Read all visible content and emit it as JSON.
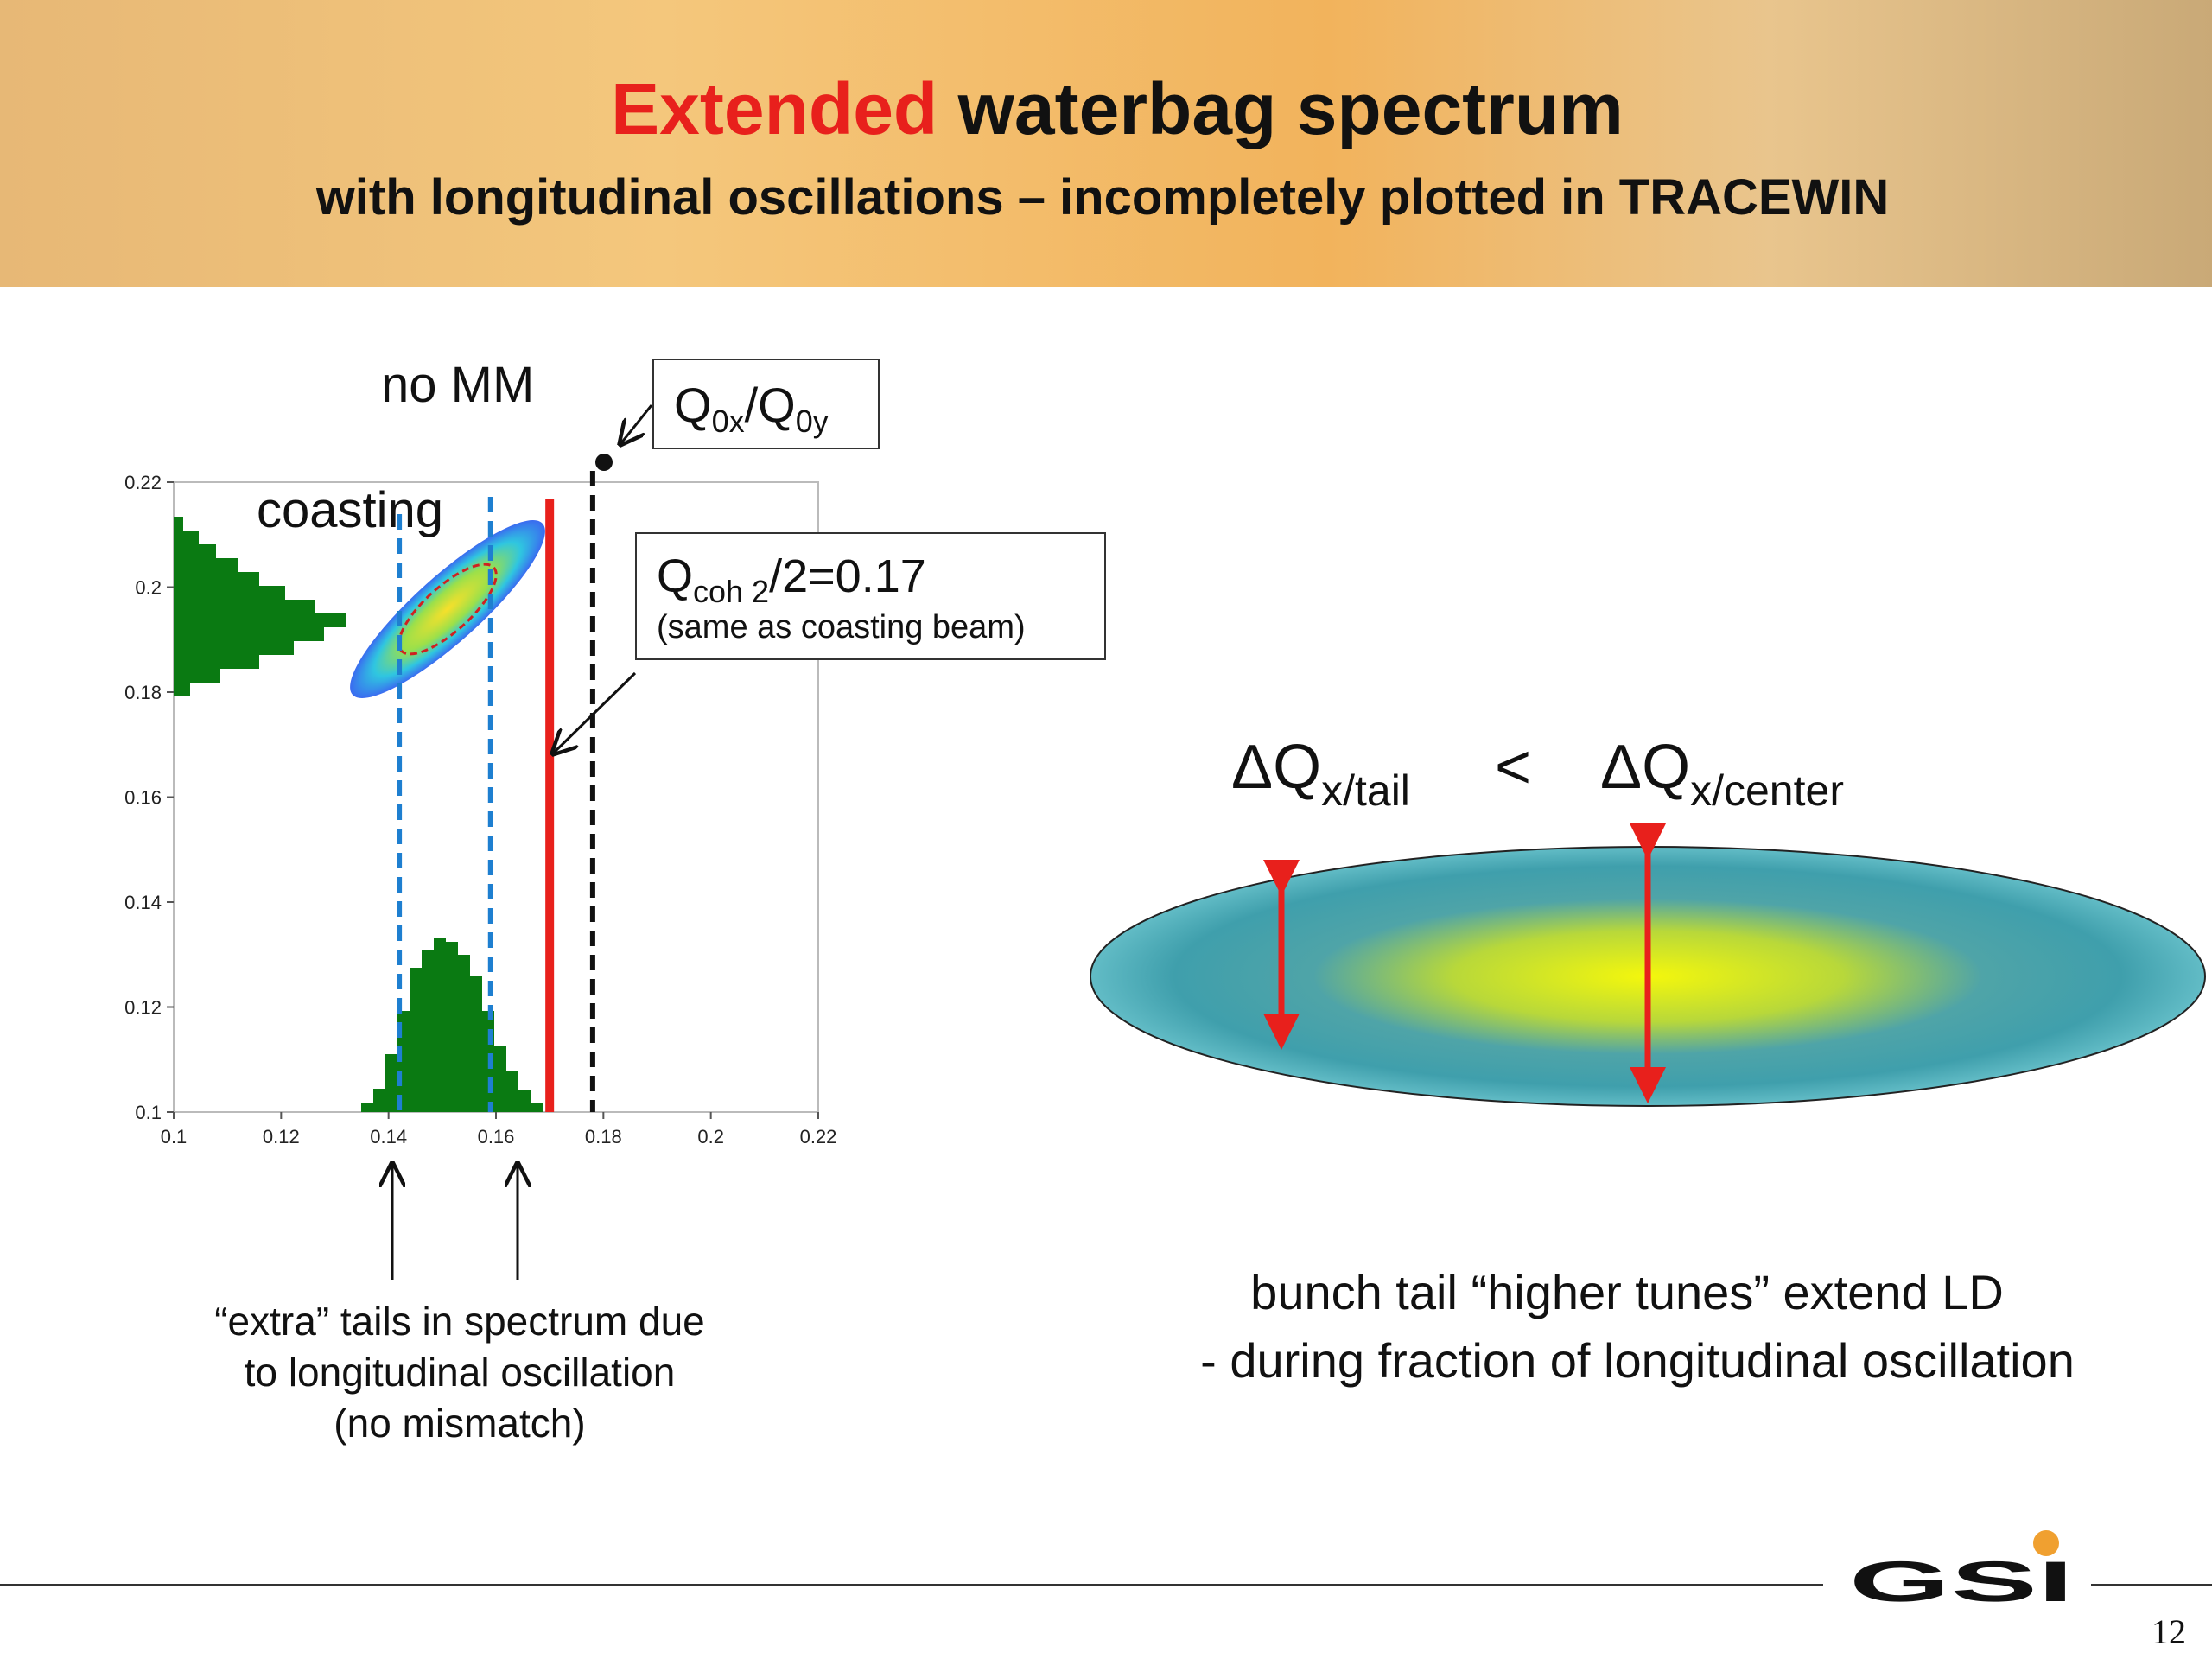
{
  "header": {
    "title_highlight": "Extended",
    "title_rest": "waterbag spectrum",
    "subtitle": "with longitudinal oscillations – incompletely plotted in  TRACEWIN"
  },
  "chart_data": {
    "type": "scatter",
    "xlim": [
      0.1,
      0.22
    ],
    "ylim": [
      0.1,
      0.22
    ],
    "xticks": [
      0.1,
      0.12,
      0.14,
      0.16,
      0.18,
      0.2,
      0.22
    ],
    "yticks": [
      0.1,
      0.12,
      0.14,
      0.16,
      0.18,
      0.2,
      0.22
    ],
    "lines": [
      {
        "x": 0.142,
        "color": "#1e7fd0",
        "style": "dashed"
      },
      {
        "x": 0.159,
        "color": "#1e7fd0",
        "style": "dashed"
      },
      {
        "x": 0.17,
        "color": "#e8201c",
        "style": "solid"
      },
      {
        "x": 0.178,
        "color": "#111111",
        "style": "dashed"
      }
    ],
    "label_nomm": "no MM",
    "label_coasting": "coasting",
    "q0_label": [
      "Q",
      "0x",
      "/Q",
      "0y"
    ],
    "qcoh_label": [
      "Q",
      "coh 2",
      "/2=0.17"
    ],
    "qcoh_note": "(same as coasting beam)",
    "caption": [
      "“extra” tails in spectrum due",
      "to longitudinal oscillation",
      "(no mismatch)"
    ]
  },
  "right": {
    "delta": [
      "ΔQ",
      "x/tail",
      "<",
      "ΔQ",
      "x/center"
    ],
    "text": [
      "bunch tail “higher tunes” extend LD",
      "- during fraction of longitudinal oscillation"
    ]
  },
  "footer": {
    "logo": "GSI",
    "page": "12"
  }
}
